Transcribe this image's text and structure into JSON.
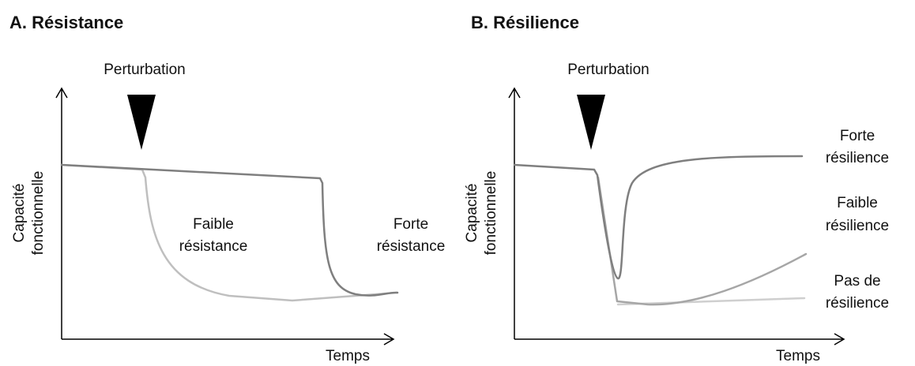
{
  "panels": [
    {
      "title": "A. Résistance",
      "event": "Perturbation",
      "y_label": [
        "Capacité",
        "fonctionnelle"
      ],
      "x_label": "Temps",
      "curve_labels": [
        [
          "Faible",
          "résistance"
        ],
        [
          "Forte",
          "résistance"
        ]
      ]
    },
    {
      "title": "B. Résilience",
      "event": "Perturbation",
      "y_label": [
        "Capacité",
        "fonctionnelle"
      ],
      "x_label": "Temps",
      "curve_labels": [
        [
          "Forte",
          "résilience"
        ],
        [
          "Faible",
          "résilience"
        ],
        [
          "Pas de",
          "résilience"
        ]
      ]
    }
  ]
}
